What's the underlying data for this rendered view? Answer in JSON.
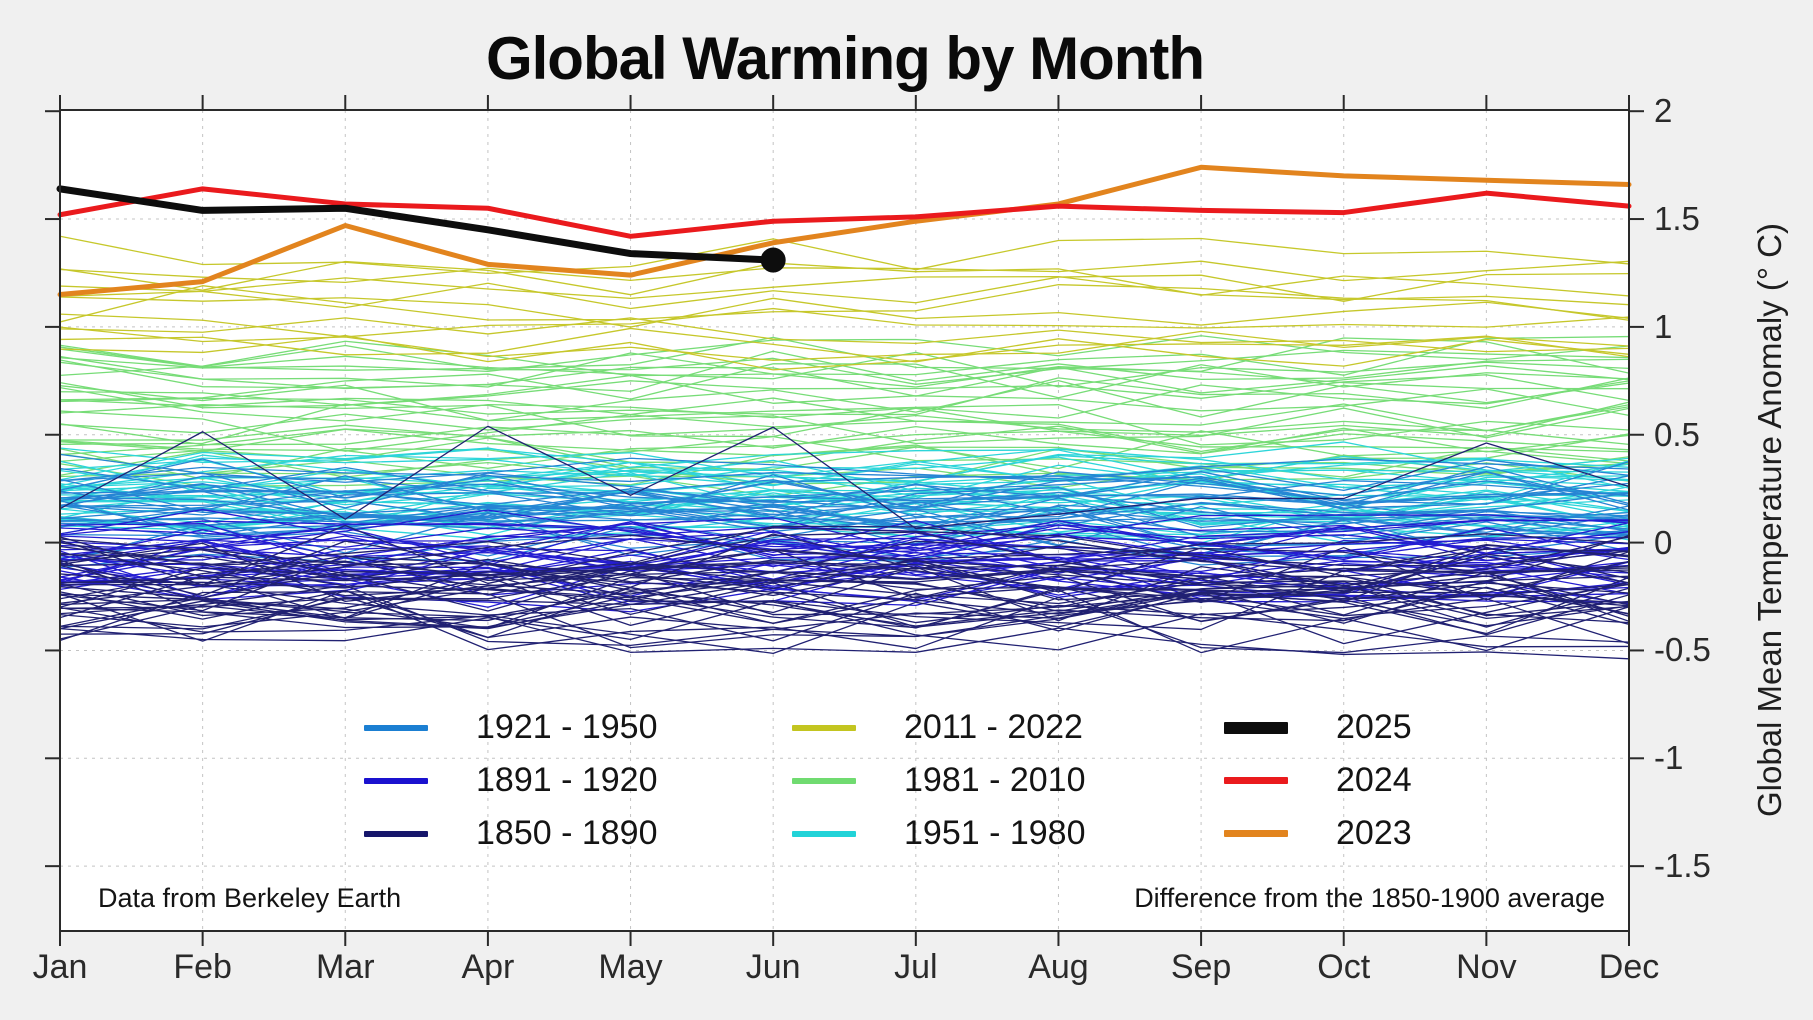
{
  "title": "Global Warming by Month",
  "y_axis_label": "Global Mean Temperature Anomaly (° C)",
  "notes": {
    "source": "Data from Berkeley Earth",
    "baseline": "Difference from the 1850-1900 average"
  },
  "legend": {
    "items": [
      {
        "label": "1921 - 1950",
        "color": "#1b7fd2"
      },
      {
        "label": "1891 - 1920",
        "color": "#1a11cf"
      },
      {
        "label": "1850 - 1890",
        "color": "#16166b"
      },
      {
        "label": "2011 - 2022",
        "color": "#c3c520"
      },
      {
        "label": "1981 - 2010",
        "color": "#70db70"
      },
      {
        "label": "1951 - 1980",
        "color": "#22d3d8"
      },
      {
        "label": "2025",
        "color": "#0d0d0d"
      },
      {
        "label": "2024",
        "color": "#ea1a1d"
      },
      {
        "label": "2023",
        "color": "#e2841e"
      }
    ]
  },
  "chart_data": {
    "type": "line",
    "title": "Global Warming by Month",
    "ylabel": "Global Mean Temperature Anomaly (° C)",
    "x_categories": [
      "Jan",
      "Feb",
      "Mar",
      "Apr",
      "May",
      "Jun",
      "Jul",
      "Aug",
      "Sep",
      "Oct",
      "Nov",
      "Dec"
    ],
    "y_ticks": [
      2,
      1.5,
      1,
      0.5,
      0,
      -0.5,
      -1,
      -1.5
    ],
    "ylim": [
      -1.8,
      2.01
    ],
    "grid": true,
    "legend_position": "lower center",
    "background_color": "#f0f0f0",
    "plot_color": "#ffffff",
    "highlight_series": [
      {
        "name": "2023",
        "color": "#e2841e",
        "width": 5,
        "values": [
          1.15,
          1.21,
          1.47,
          1.29,
          1.24,
          1.39,
          1.49,
          1.57,
          1.74,
          1.7,
          1.68,
          1.66
        ]
      },
      {
        "name": "2024",
        "color": "#ea1a1d",
        "width": 5,
        "values": [
          1.52,
          1.64,
          1.57,
          1.55,
          1.42,
          1.49,
          1.51,
          1.56,
          1.54,
          1.53,
          1.62,
          1.56
        ]
      },
      {
        "name": "2025",
        "color": "#0d0d0d",
        "width": 7,
        "end_marker": true,
        "values": [
          1.64,
          1.54,
          1.55,
          1.45,
          1.34,
          1.31
        ]
      }
    ],
    "era_series": [
      {
        "name": "1981 - 2010",
        "color": "#70db70",
        "years": 30,
        "band_low": 0.3,
        "band_high": 0.9,
        "monthly_noise": 0.1
      },
      {
        "name": "1951 - 1980",
        "color": "#22d3d8",
        "years": 30,
        "band_low": 0.08,
        "band_high": 0.36,
        "monthly_noise": 0.1
      },
      {
        "name": "1921 - 1950",
        "color": "#1b7fd2",
        "years": 30,
        "band_low": 0.0,
        "band_high": 0.3,
        "monthly_noise": 0.1
      },
      {
        "name": "1891 - 1920",
        "color": "#1a11cf",
        "years": 30,
        "band_low": -0.22,
        "band_high": 0.05,
        "monthly_noise": 0.11
      },
      {
        "name": "1850 - 1890",
        "color": "#16166b",
        "years": 41,
        "band_low": -0.4,
        "band_high": -0.05,
        "monthly_noise": 0.15,
        "outlier_base": 0.3
      },
      {
        "name": "2011 - 2022",
        "color": "#c3c520",
        "years": 12,
        "band_low": 0.85,
        "band_high": 1.33,
        "monthly_noise": 0.1
      }
    ]
  }
}
